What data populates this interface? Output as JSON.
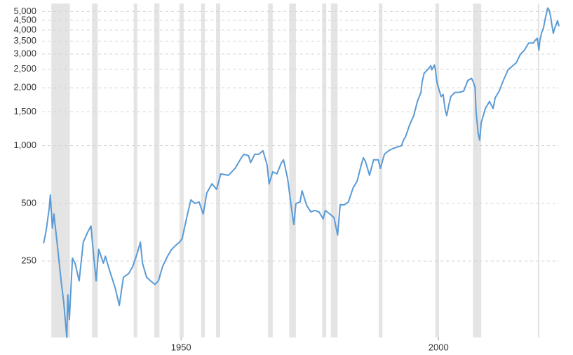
{
  "chart_data": {
    "type": "line",
    "log_scale": true,
    "grid": true,
    "color": "#5b9bd5",
    "band_color": "#e4e4e4",
    "xlim": [
      1923,
      2023.4
    ],
    "ylim": [
      100,
      5500
    ],
    "xticks": [
      1950,
      2000
    ],
    "yticks": [
      250,
      500,
      {
        "value": 1000,
        "label": "1,000"
      },
      {
        "value": 1500,
        "label": "1,500"
      },
      {
        "value": 2000,
        "label": "2,000"
      },
      {
        "value": 2500,
        "label": "2,500"
      },
      {
        "value": 3000,
        "label": "3,000"
      },
      {
        "value": 3500,
        "label": "3,500"
      },
      {
        "value": 4000,
        "label": "4,000"
      },
      {
        "value": 4500,
        "label": "4,500"
      },
      {
        "value": 5000,
        "label": "5,000"
      }
    ],
    "recessions": [
      [
        1924.8,
        1928.4
      ],
      [
        1932.7,
        1933.8
      ],
      [
        1940.8,
        1941.5
      ],
      [
        1944.8,
        1945.8
      ],
      [
        1949.7,
        1950.5
      ],
      [
        1953.9,
        1954.6
      ],
      [
        1956.8,
        1957.6
      ],
      [
        1966.9,
        1967.8
      ],
      [
        1971.0,
        1972.3
      ],
      [
        1977.4,
        1978.2
      ],
      [
        1979.1,
        1980.4
      ],
      [
        1988.4,
        1989.1
      ],
      [
        1999.4,
        2000.1
      ],
      [
        2006.7,
        2008.3
      ],
      [
        2019.3,
        2019.6
      ]
    ],
    "x": [
      1923.3,
      1923.8,
      1924.4,
      1924.6,
      1925.0,
      1925.3,
      1925.9,
      1926.7,
      1927.2,
      1927.8,
      1928.0,
      1928.3,
      1928.9,
      1929.4,
      1930.2,
      1931.0,
      1931.9,
      1932.5,
      1932.9,
      1933.5,
      1934.0,
      1934.9,
      1935.3,
      1936.1,
      1937.2,
      1938.0,
      1938.8,
      1939.8,
      1940.6,
      1941.5,
      1942.1,
      1942.5,
      1943.3,
      1944.1,
      1944.9,
      1945.6,
      1946.4,
      1947.3,
      1948.1,
      1948.9,
      1949.7,
      1950.2,
      1951.1,
      1951.9,
      1952.7,
      1953.5,
      1954.3,
      1955.0,
      1956.0,
      1956.9,
      1957.7,
      1959.2,
      1960.5,
      1961.8,
      1962.2,
      1963.1,
      1963.5,
      1964.3,
      1965.1,
      1965.9,
      1966.7,
      1967.1,
      1967.8,
      1968.6,
      1969.5,
      1969.9,
      1970.7,
      1971.5,
      1971.9,
      1972.3,
      1973.1,
      1973.5,
      1974.4,
      1975.2,
      1976.0,
      1976.8,
      1977.6,
      1978.0,
      1978.9,
      1979.7,
      1980.4,
      1980.9,
      1981.7,
      1982.5,
      1983.4,
      1984.2,
      1985.0,
      1985.4,
      1985.8,
      1986.6,
      1987.4,
      1988.3,
      1988.7,
      1989.5,
      1990.3,
      1991.1,
      1991.9,
      1992.8,
      1993.2,
      1993.6,
      1994.4,
      1995.2,
      1995.9,
      1996.6,
      1996.8,
      1997.2,
      1998.1,
      1998.5,
      1998.7,
      1999.2,
      1999.4,
      1999.7,
      2000.1,
      2000.5,
      2000.9,
      2001.3,
      2001.6,
      2002.0,
      2002.4,
      2003.2,
      2004.1,
      2004.9,
      2005.7,
      2006.4,
      2006.8,
      2007.1,
      2007.3,
      2007.7,
      2008.0,
      2008.3,
      2009.1,
      2009.9,
      2010.6,
      2011.0,
      2011.8,
      2012.6,
      2013.5,
      2014.3,
      2015.1,
      2015.9,
      2016.7,
      2017.5,
      2018.4,
      2018.8,
      2019.2,
      2019.5,
      2019.7,
      2020.0,
      2020.4,
      2020.8,
      2021.2,
      2021.5,
      2021.8,
      2022.0,
      2022.3,
      2022.6,
      2022.9,
      2023.1,
      2023.4
    ],
    "values": [
      309,
      362,
      475,
      553,
      372,
      440,
      314,
      197,
      153,
      100,
      167,
      124,
      259,
      244,
      197,
      314,
      356,
      381,
      288,
      197,
      288,
      244,
      265,
      224,
      181,
      147,
      206,
      215,
      234,
      276,
      314,
      244,
      206,
      197,
      189,
      197,
      234,
      263,
      286,
      301,
      314,
      327,
      422,
      521,
      499,
      508,
      440,
      567,
      632,
      591,
      712,
      700,
      761,
      872,
      901,
      886,
      815,
      901,
      901,
      940,
      794,
      632,
      730,
      712,
      815,
      843,
      671,
      459,
      388,
      499,
      508,
      581,
      487,
      451,
      459,
      451,
      415,
      459,
      440,
      422,
      342,
      491,
      491,
      508,
      601,
      654,
      794,
      864,
      829,
      700,
      843,
      843,
      761,
      901,
      940,
      964,
      981,
      998,
      1067,
      1113,
      1284,
      1434,
      1697,
      1894,
      2131,
      2379,
      2523,
      2610,
      2481,
      2632,
      2481,
      2131,
      1959,
      1801,
      1847,
      1534,
      1434,
      1627,
      1801,
      1894,
      1894,
      1926,
      2185,
      2242,
      2131,
      2010,
      1496,
      1161,
      1067,
      1318,
      1560,
      1697,
      1560,
      1771,
      1926,
      2185,
      2481,
      2588,
      2700,
      2988,
      3143,
      3420,
      3420,
      3535,
      3626,
      3143,
      3535,
      3848,
      4118,
      4672,
      5214,
      5084,
      4672,
      4294,
      3848,
      4118,
      4294,
      4480,
      4186
    ]
  }
}
